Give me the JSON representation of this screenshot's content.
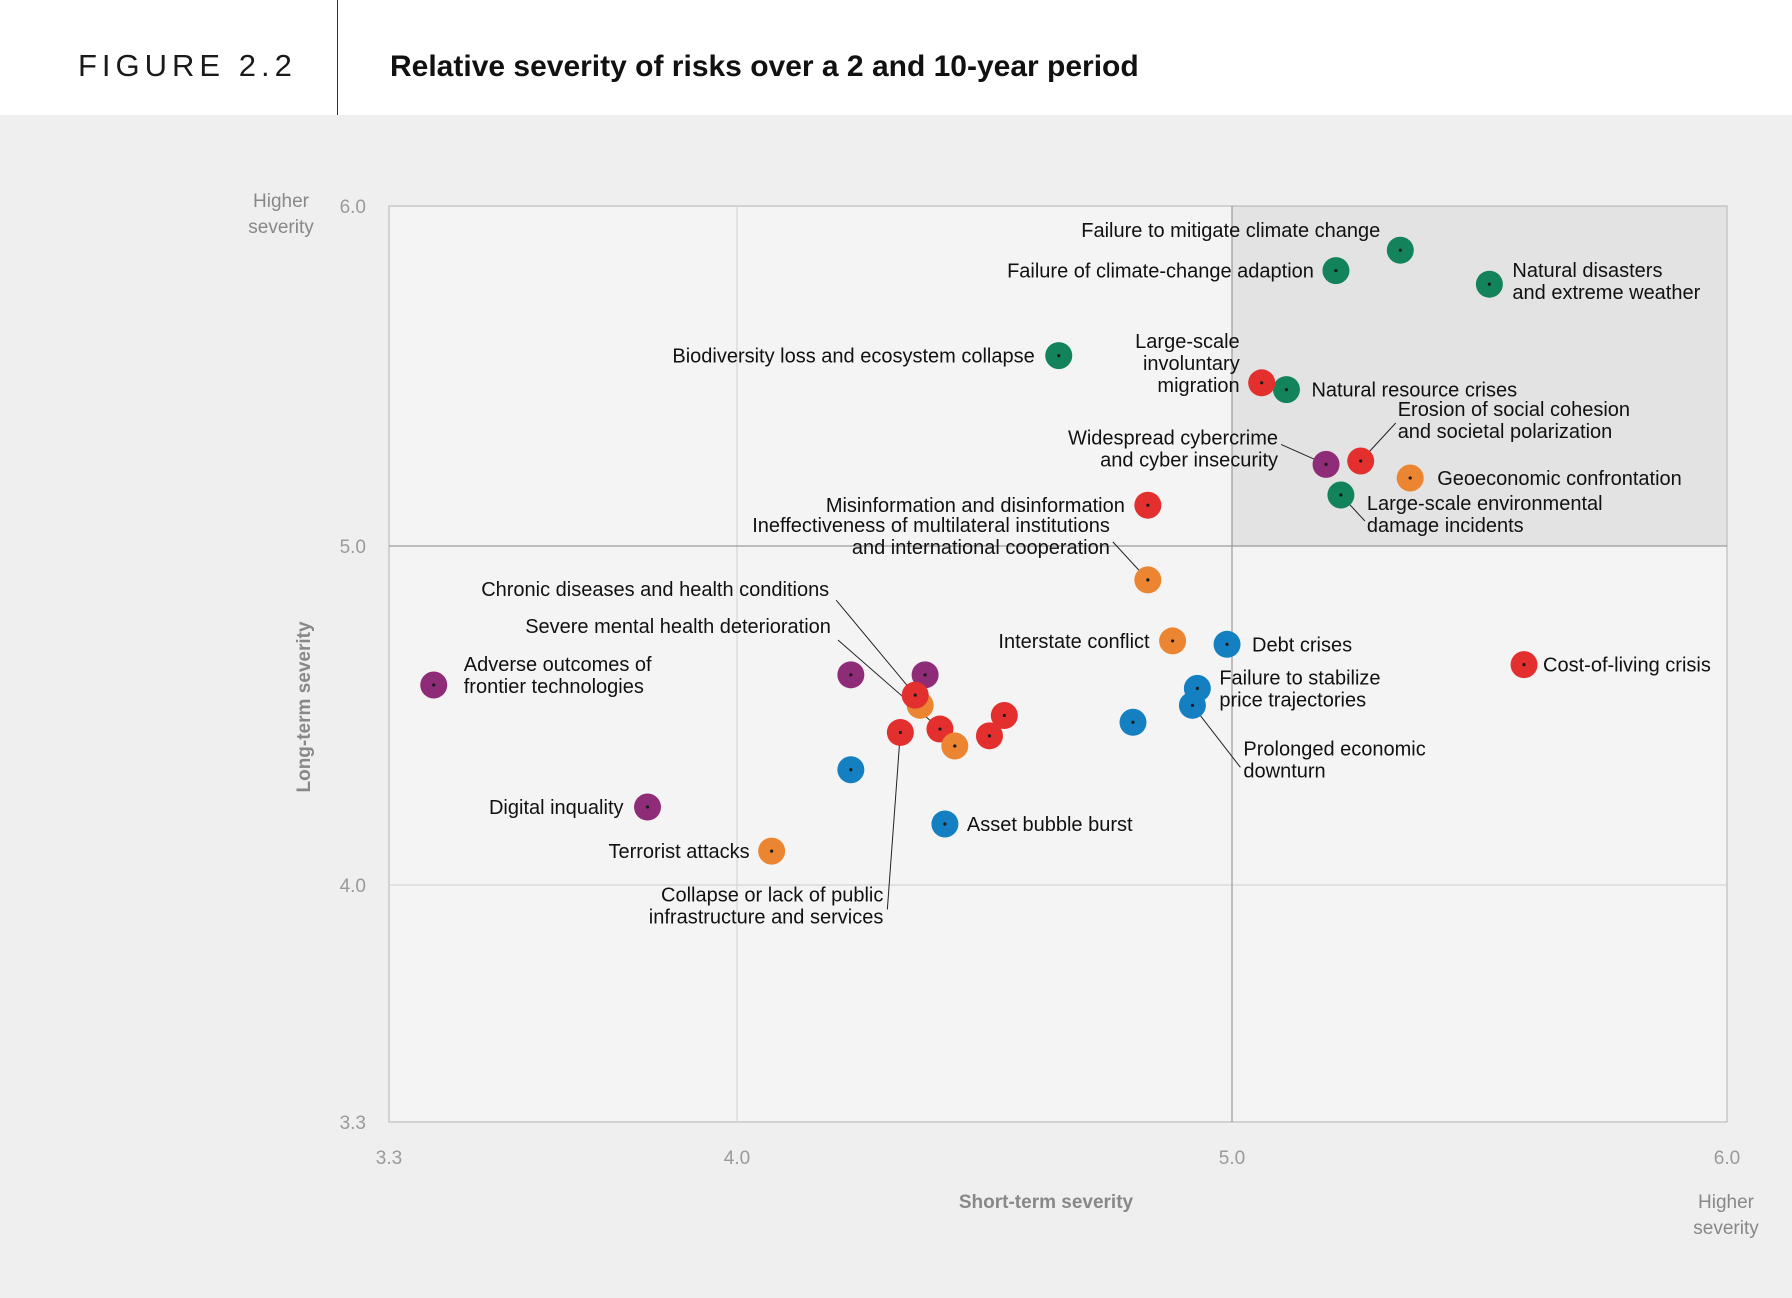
{
  "header": {
    "figure_label": "FIGURE 2.2",
    "title": "Relative severity of risks over a 2 and 10-year period"
  },
  "colors": {
    "environmental": "#12835a",
    "societal": "#e3302e",
    "geopolitical": "#ec8531",
    "economic": "#1480c2",
    "technological": "#8f2c78",
    "highlight_quadrant": "#e3e3e3",
    "background": "#efefef"
  },
  "chart_data": {
    "type": "scatter",
    "title": "Relative severity of risks over a 2 and 10-year period",
    "xlabel": "Short-term severity",
    "ylabel": "Long-term severity",
    "xlim": [
      3.3,
      6.0
    ],
    "ylim": [
      3.3,
      6.0
    ],
    "x_ticks": [
      "3.3",
      "4.0",
      "5.0",
      "6.0"
    ],
    "y_ticks": [
      "3.3",
      "4.0",
      "5.0",
      "6.0"
    ],
    "x_axis_end_label": [
      "Higher",
      "severity"
    ],
    "y_axis_end_label": [
      "Higher",
      "severity"
    ],
    "grid": true,
    "highlight_quadrant": {
      "x_from": 5.0,
      "y_from": 5.0
    },
    "points": [
      {
        "x": 5.34,
        "y": 5.87,
        "category": "environmental",
        "label": [
          "Failure to mitigate climate change"
        ]
      },
      {
        "x": 5.21,
        "y": 5.81,
        "category": "environmental",
        "label": [
          "Failure of climate-change adaption"
        ]
      },
      {
        "x": 5.52,
        "y": 5.77,
        "category": "environmental",
        "label": [
          "Natural disasters",
          "and extreme weather"
        ]
      },
      {
        "x": 4.65,
        "y": 5.56,
        "category": "environmental",
        "label": [
          "Biodiversity loss and ecosystem collapse"
        ]
      },
      {
        "x": 5.11,
        "y": 5.46,
        "category": "environmental",
        "label": [
          "Natural resource crises"
        ]
      },
      {
        "x": 5.06,
        "y": 5.48,
        "category": "societal",
        "label": [
          "Large-scale",
          "involuntary",
          "migration"
        ]
      },
      {
        "x": 5.26,
        "y": 5.25,
        "category": "societal",
        "label": [
          "Erosion of social cohesion",
          "and societal polarization"
        ]
      },
      {
        "x": 5.19,
        "y": 5.24,
        "category": "technological",
        "label": [
          "Widespread cybercrime",
          "and cyber insecurity"
        ]
      },
      {
        "x": 5.36,
        "y": 5.2,
        "category": "geopolitical",
        "label": [
          "Geoeconomic confrontation"
        ]
      },
      {
        "x": 5.22,
        "y": 5.15,
        "category": "environmental",
        "label": [
          "Large-scale environmental",
          "damage incidents"
        ]
      },
      {
        "x": 4.83,
        "y": 5.12,
        "category": "societal",
        "label": [
          "Misinformation and disinformation"
        ]
      },
      {
        "x": 4.83,
        "y": 4.9,
        "category": "geopolitical",
        "label": [
          "Ineffectiveness of multilateral institutions",
          "and international cooperation"
        ]
      },
      {
        "x": 4.88,
        "y": 4.72,
        "category": "geopolitical",
        "label": [
          "Interstate conflict"
        ]
      },
      {
        "x": 4.99,
        "y": 4.71,
        "category": "economic",
        "label": [
          "Debt crises"
        ]
      },
      {
        "x": 5.59,
        "y": 4.65,
        "category": "societal",
        "label": [
          "Cost-of-living crisis"
        ]
      },
      {
        "x": 4.93,
        "y": 4.58,
        "category": "economic",
        "label": [
          "Failure to stabilize",
          "price trajectories"
        ]
      },
      {
        "x": 4.92,
        "y": 4.53,
        "category": "economic",
        "label": [
          "Prolonged economic",
          "downturn"
        ]
      },
      {
        "x": 4.8,
        "y": 4.48,
        "category": "economic",
        "label": []
      },
      {
        "x": 3.39,
        "y": 4.59,
        "category": "technological",
        "label": [
          "Adverse outcomes of",
          "frontier technologies"
        ]
      },
      {
        "x": 4.23,
        "y": 4.62,
        "category": "technological",
        "label": []
      },
      {
        "x": 4.38,
        "y": 4.62,
        "category": "technological",
        "label": []
      },
      {
        "x": 4.37,
        "y": 4.53,
        "category": "geopolitical",
        "label": []
      },
      {
        "x": 4.36,
        "y": 4.56,
        "category": "societal",
        "label": [
          "Chronic diseases and health conditions"
        ]
      },
      {
        "x": 4.41,
        "y": 4.46,
        "category": "societal",
        "label": [
          "Severe mental health deterioration"
        ]
      },
      {
        "x": 4.33,
        "y": 4.45,
        "category": "societal",
        "label": [
          "Collapse or lack of public",
          "infrastructure and services"
        ]
      },
      {
        "x": 4.44,
        "y": 4.41,
        "category": "geopolitical",
        "label": []
      },
      {
        "x": 4.51,
        "y": 4.44,
        "category": "societal",
        "label": []
      },
      {
        "x": 4.54,
        "y": 4.5,
        "category": "societal",
        "label": []
      },
      {
        "x": 4.23,
        "y": 4.34,
        "category": "economic",
        "label": []
      },
      {
        "x": 3.82,
        "y": 4.23,
        "category": "technological",
        "label": [
          "Digital inquality"
        ]
      },
      {
        "x": 4.42,
        "y": 4.18,
        "category": "economic",
        "label": [
          "Asset bubble burst"
        ]
      },
      {
        "x": 4.07,
        "y": 4.1,
        "category": "geopolitical",
        "label": [
          "Terrorist attacks"
        ]
      }
    ]
  }
}
